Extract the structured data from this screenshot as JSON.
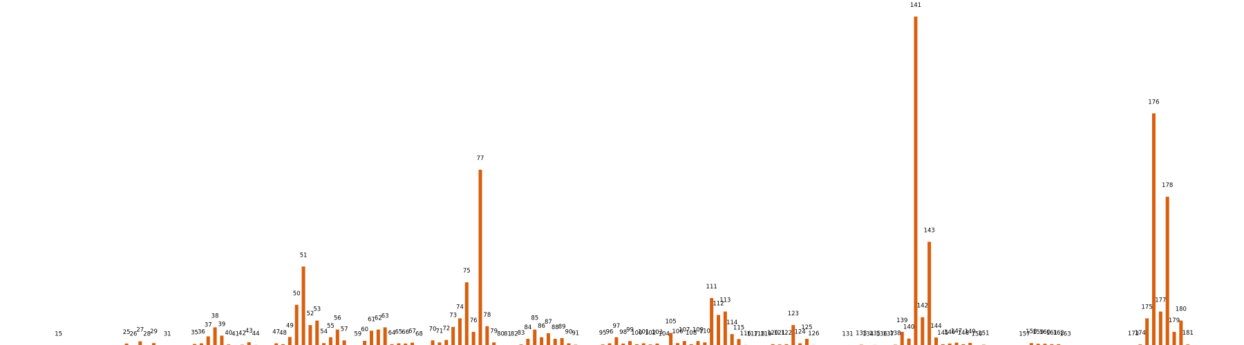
{
  "chart_data": {
    "type": "bar",
    "title": "",
    "xlabel": "",
    "ylabel": "",
    "bar_color": "#d95f0e",
    "axes_visible": false,
    "grid": false,
    "ylim": [
      0,
      146
    ],
    "bars": [
      {
        "label": "15",
        "value": 0
      },
      {
        "label": "25",
        "value": 0.8
      },
      {
        "label": "26",
        "value": 0
      },
      {
        "label": "27",
        "value": 1.8
      },
      {
        "label": "28",
        "value": 0
      },
      {
        "label": "29",
        "value": 1
      },
      {
        "label": "31",
        "value": 0
      },
      {
        "label": "35",
        "value": 0.6
      },
      {
        "label": "36",
        "value": 0.9
      },
      {
        "label": "37",
        "value": 4
      },
      {
        "label": "38",
        "value": 8
      },
      {
        "label": "39",
        "value": 4.3
      },
      {
        "label": "40",
        "value": 0.4
      },
      {
        "label": "41",
        "value": 0
      },
      {
        "label": "42",
        "value": 0.3
      },
      {
        "label": "43",
        "value": 1.4
      },
      {
        "label": "44",
        "value": 0.2
      },
      {
        "label": "47",
        "value": 0.9
      },
      {
        "label": "48",
        "value": 0.5
      },
      {
        "label": "49",
        "value": 3.7
      },
      {
        "label": "50",
        "value": 18
      },
      {
        "label": "51",
        "value": 35
      },
      {
        "label": "52",
        "value": 9
      },
      {
        "label": "53",
        "value": 11
      },
      {
        "label": "54",
        "value": 1
      },
      {
        "label": "55",
        "value": 3.6
      },
      {
        "label": "56",
        "value": 7
      },
      {
        "label": "57",
        "value": 2.2
      },
      {
        "label": "59",
        "value": 0
      },
      {
        "label": "60",
        "value": 2
      },
      {
        "label": "61",
        "value": 6.5
      },
      {
        "label": "62",
        "value": 7
      },
      {
        "label": "63",
        "value": 8
      },
      {
        "label": "64",
        "value": 0.5
      },
      {
        "label": "65",
        "value": 0.9
      },
      {
        "label": "66",
        "value": 0.8
      },
      {
        "label": "67",
        "value": 1.2
      },
      {
        "label": "68",
        "value": 0
      },
      {
        "label": "70",
        "value": 2.2
      },
      {
        "label": "71",
        "value": 1.3
      },
      {
        "label": "72",
        "value": 2.4
      },
      {
        "label": "73",
        "value": 8.2
      },
      {
        "label": "74",
        "value": 12
      },
      {
        "label": "75",
        "value": 28
      },
      {
        "label": "76",
        "value": 6
      },
      {
        "label": "77",
        "value": 78
      },
      {
        "label": "78",
        "value": 8.5
      },
      {
        "label": "79",
        "value": 1.3
      },
      {
        "label": "80",
        "value": 0
      },
      {
        "label": "81",
        "value": 0
      },
      {
        "label": "82",
        "value": 0
      },
      {
        "label": "83",
        "value": 0.4
      },
      {
        "label": "84",
        "value": 2.9
      },
      {
        "label": "85",
        "value": 7
      },
      {
        "label": "86",
        "value": 3.6
      },
      {
        "label": "87",
        "value": 5.4
      },
      {
        "label": "88",
        "value": 2.9
      },
      {
        "label": "89",
        "value": 3.2
      },
      {
        "label": "90",
        "value": 0.9
      },
      {
        "label": "91",
        "value": 0.3
      },
      {
        "label": "95",
        "value": 0.4
      },
      {
        "label": "96",
        "value": 0.9
      },
      {
        "label": "97",
        "value": 3.6
      },
      {
        "label": "98",
        "value": 0.8
      },
      {
        "label": "99",
        "value": 1.9
      },
      {
        "label": "100",
        "value": 0.5
      },
      {
        "label": "101",
        "value": 0.9
      },
      {
        "label": "102",
        "value": 0.4
      },
      {
        "label": "103",
        "value": 0.8
      },
      {
        "label": "104",
        "value": 0
      },
      {
        "label": "105",
        "value": 5.5
      },
      {
        "label": "106",
        "value": 1
      },
      {
        "label": "107",
        "value": 1.9
      },
      {
        "label": "108",
        "value": 0.5
      },
      {
        "label": "109",
        "value": 1.9
      },
      {
        "label": "110",
        "value": 1.3
      },
      {
        "label": "111",
        "value": 21
      },
      {
        "label": "112",
        "value": 13.5
      },
      {
        "label": "113",
        "value": 15
      },
      {
        "label": "114",
        "value": 5
      },
      {
        "label": "115",
        "value": 2.8
      },
      {
        "label": "116",
        "value": 0.2
      },
      {
        "label": "117",
        "value": 0
      },
      {
        "label": "118",
        "value": 0
      },
      {
        "label": "119",
        "value": 0
      },
      {
        "label": "120",
        "value": 0.5
      },
      {
        "label": "121",
        "value": 0.4
      },
      {
        "label": "122",
        "value": 0.5
      },
      {
        "label": "123",
        "value": 9
      },
      {
        "label": "124",
        "value": 0.9
      },
      {
        "label": "125",
        "value": 2.9
      },
      {
        "label": "126",
        "value": 0.2
      },
      {
        "label": "131",
        "value": 0
      },
      {
        "label": "133",
        "value": 0.3
      },
      {
        "label": "134",
        "value": 0
      },
      {
        "label": "135",
        "value": 0.2
      },
      {
        "label": "136",
        "value": 0
      },
      {
        "label": "137",
        "value": 0
      },
      {
        "label": "138",
        "value": 0.3
      },
      {
        "label": "139",
        "value": 6
      },
      {
        "label": "140",
        "value": 3
      },
      {
        "label": "141",
        "value": 146
      },
      {
        "label": "142",
        "value": 12.5
      },
      {
        "label": "143",
        "value": 46
      },
      {
        "label": "144",
        "value": 3.5
      },
      {
        "label": "145",
        "value": 0.5
      },
      {
        "label": "146",
        "value": 0.8
      },
      {
        "label": "147",
        "value": 1.2
      },
      {
        "label": "148",
        "value": 0.5
      },
      {
        "label": "149",
        "value": 1.1
      },
      {
        "label": "150",
        "value": 0
      },
      {
        "label": "151",
        "value": 0.3
      },
      {
        "label": "157",
        "value": 0
      },
      {
        "label": "158",
        "value": 1
      },
      {
        "label": "159",
        "value": 0.7
      },
      {
        "label": "160",
        "value": 0.7
      },
      {
        "label": "161",
        "value": 0.5
      },
      {
        "label": "162",
        "value": 0.5
      },
      {
        "label": "163",
        "value": 0
      },
      {
        "label": "173",
        "value": 0.1
      },
      {
        "label": "174",
        "value": 0.4
      },
      {
        "label": "175",
        "value": 12
      },
      {
        "label": "176",
        "value": 103
      },
      {
        "label": "177",
        "value": 15
      },
      {
        "label": "178",
        "value": 66
      },
      {
        "label": "179",
        "value": 6
      },
      {
        "label": "180",
        "value": 11
      },
      {
        "label": "181",
        "value": 0.4
      }
    ]
  }
}
